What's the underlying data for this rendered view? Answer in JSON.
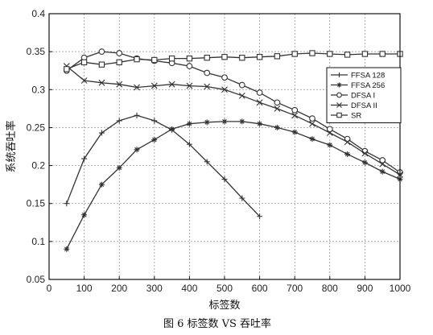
{
  "chart_data": {
    "type": "line",
    "title": "",
    "xlabel": "标签数",
    "ylabel": "系统吞吐率",
    "caption": "图 6 标签数 VS 吞吐率",
    "xlim": [
      0,
      1000
    ],
    "ylim": [
      0.05,
      0.4
    ],
    "xticks": [
      "0",
      "100",
      "200",
      "300",
      "400",
      "500",
      "600",
      "700",
      "800",
      "900",
      "1000"
    ],
    "yticks": [
      "0.05",
      "0.1",
      "0.15",
      "0.2",
      "0.25",
      "0.3",
      "0.35",
      "0.4"
    ],
    "grid": true,
    "legend_position": "right",
    "series": [
      {
        "name": "FFSA 128",
        "marker": "plus",
        "points": [
          [
            50,
            0.15
          ],
          [
            100,
            0.209
          ],
          [
            150,
            0.243
          ],
          [
            200,
            0.259
          ],
          [
            250,
            0.266
          ],
          [
            300,
            0.259
          ],
          [
            350,
            0.247
          ],
          [
            400,
            0.228
          ],
          [
            450,
            0.205
          ],
          [
            500,
            0.182
          ],
          [
            550,
            0.157
          ],
          [
            600,
            0.133
          ]
        ]
      },
      {
        "name": "FFSA 256",
        "marker": "star",
        "points": [
          [
            50,
            0.09
          ],
          [
            100,
            0.135
          ],
          [
            150,
            0.175
          ],
          [
            200,
            0.197
          ],
          [
            250,
            0.221
          ],
          [
            300,
            0.234
          ],
          [
            350,
            0.248
          ],
          [
            400,
            0.255
          ],
          [
            450,
            0.257
          ],
          [
            500,
            0.258
          ],
          [
            550,
            0.258
          ],
          [
            600,
            0.255
          ],
          [
            650,
            0.25
          ],
          [
            700,
            0.244
          ],
          [
            750,
            0.235
          ],
          [
            800,
            0.227
          ],
          [
            850,
            0.215
          ],
          [
            900,
            0.204
          ],
          [
            950,
            0.192
          ],
          [
            1000,
            0.182
          ]
        ]
      },
      {
        "name": "DFSA I",
        "marker": "circle",
        "points": [
          [
            50,
            0.325
          ],
          [
            100,
            0.342
          ],
          [
            150,
            0.35
          ],
          [
            200,
            0.348
          ],
          [
            250,
            0.341
          ],
          [
            300,
            0.338
          ],
          [
            350,
            0.335
          ],
          [
            400,
            0.331
          ],
          [
            450,
            0.322
          ],
          [
            500,
            0.316
          ],
          [
            550,
            0.306
          ],
          [
            600,
            0.296
          ],
          [
            650,
            0.283
          ],
          [
            700,
            0.273
          ],
          [
            750,
            0.262
          ],
          [
            800,
            0.248
          ],
          [
            850,
            0.235
          ],
          [
            900,
            0.219
          ],
          [
            950,
            0.207
          ],
          [
            1000,
            0.191
          ]
        ]
      },
      {
        "name": "DFSA II",
        "marker": "x",
        "points": [
          [
            50,
            0.331
          ],
          [
            100,
            0.312
          ],
          [
            150,
            0.309
          ],
          [
            200,
            0.307
          ],
          [
            250,
            0.303
          ],
          [
            300,
            0.305
          ],
          [
            350,
            0.307
          ],
          [
            400,
            0.305
          ],
          [
            450,
            0.304
          ],
          [
            500,
            0.3
          ],
          [
            550,
            0.292
          ],
          [
            600,
            0.283
          ],
          [
            650,
            0.275
          ],
          [
            700,
            0.266
          ],
          [
            750,
            0.255
          ],
          [
            800,
            0.243
          ],
          [
            850,
            0.231
          ],
          [
            900,
            0.216
          ],
          [
            950,
            0.202
          ],
          [
            1000,
            0.188
          ]
        ]
      },
      {
        "name": "SR",
        "marker": "square",
        "points": [
          [
            50,
            0.327
          ],
          [
            100,
            0.336
          ],
          [
            150,
            0.333
          ],
          [
            200,
            0.336
          ],
          [
            250,
            0.34
          ],
          [
            300,
            0.339
          ],
          [
            350,
            0.341
          ],
          [
            400,
            0.341
          ],
          [
            450,
            0.342
          ],
          [
            500,
            0.343
          ],
          [
            550,
            0.342
          ],
          [
            600,
            0.343
          ],
          [
            650,
            0.344
          ],
          [
            700,
            0.347
          ],
          [
            750,
            0.348
          ],
          [
            800,
            0.347
          ],
          [
            850,
            0.346
          ],
          [
            900,
            0.347
          ],
          [
            950,
            0.347
          ],
          [
            1000,
            0.347
          ]
        ]
      }
    ]
  }
}
